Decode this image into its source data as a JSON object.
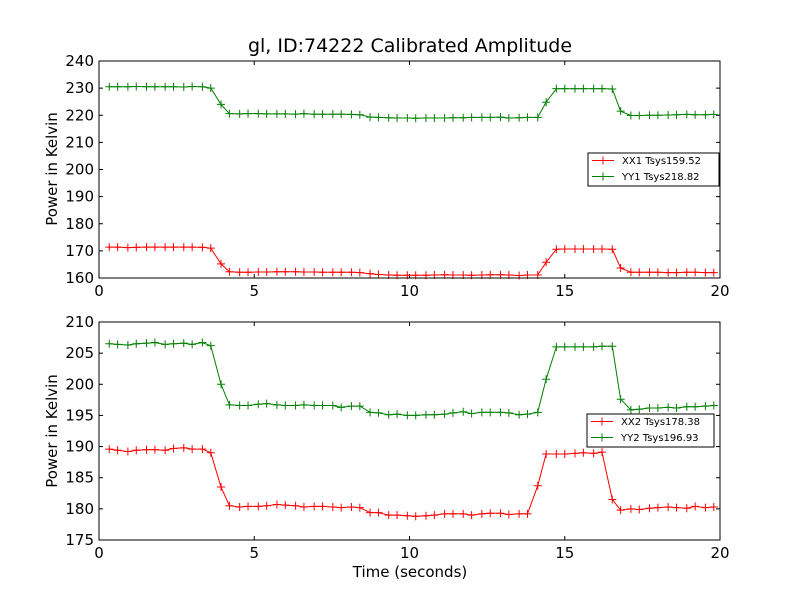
{
  "chart_data": [
    {
      "type": "line",
      "title": "gl, ID:74222 Calibrated Amplitude",
      "xlabel": "",
      "ylabel": "Power in Kelvin",
      "xlim": [
        0,
        20
      ],
      "ylim": [
        160,
        240
      ],
      "xticks": [
        "0",
        "5",
        "10",
        "15",
        "20"
      ],
      "yticks": [
        "160",
        "170",
        "180",
        "190",
        "200",
        "210",
        "220",
        "230",
        "240"
      ],
      "grid": false,
      "legend": "center-right",
      "x": [
        0.33,
        0.6,
        0.93,
        1.2,
        1.53,
        1.8,
        2.13,
        2.4,
        2.73,
        3.0,
        3.33,
        3.6,
        3.93,
        4.2,
        4.53,
        4.8,
        5.13,
        5.4,
        5.73,
        6.0,
        6.33,
        6.6,
        6.93,
        7.2,
        7.53,
        7.8,
        8.13,
        8.4,
        8.73,
        9.0,
        9.33,
        9.6,
        9.93,
        10.2,
        10.53,
        10.8,
        11.13,
        11.4,
        11.73,
        12.0,
        12.33,
        12.6,
        12.93,
        13.2,
        13.53,
        13.8,
        14.13,
        14.4,
        14.73,
        15.0,
        15.33,
        15.6,
        15.93,
        16.2,
        16.53,
        16.8,
        17.13,
        17.4,
        17.73,
        18.0,
        18.33,
        18.6,
        18.93,
        19.2,
        19.53,
        19.8
      ],
      "series": [
        {
          "name": "XX1 Tsys159.52",
          "color": "#ff0000",
          "values": [
            171.4,
            171.4,
            171.2,
            171.3,
            171.4,
            171.4,
            171.4,
            171.4,
            171.4,
            171.4,
            171.3,
            171.0,
            165.2,
            162.3,
            162.1,
            162.1,
            162.2,
            162.2,
            162.3,
            162.3,
            162.3,
            162.2,
            162.2,
            162.1,
            162.1,
            162.1,
            162.1,
            162.0,
            161.6,
            161.3,
            161.1,
            161.0,
            161.0,
            161.0,
            161.0,
            161.1,
            161.2,
            161.1,
            161.1,
            161.0,
            161.1,
            161.2,
            161.2,
            161.1,
            160.9,
            161.1,
            161.1,
            165.8,
            170.6,
            170.7,
            170.7,
            170.7,
            170.7,
            170.7,
            170.6,
            163.7,
            162.1,
            162.1,
            162.1,
            162.1,
            162.0,
            162.0,
            162.1,
            162.1,
            162.0,
            162.0
          ]
        },
        {
          "name": "YY1 Tsys218.82",
          "color": "#008000",
          "values": [
            230.5,
            230.5,
            230.5,
            230.6,
            230.5,
            230.5,
            230.5,
            230.5,
            230.4,
            230.6,
            230.5,
            230.0,
            224.0,
            220.6,
            220.5,
            220.6,
            220.6,
            220.5,
            220.5,
            220.5,
            220.4,
            220.6,
            220.4,
            220.4,
            220.4,
            220.4,
            220.3,
            220.2,
            219.3,
            219.2,
            219.1,
            219.0,
            219.0,
            218.9,
            219.0,
            219.0,
            219.0,
            219.1,
            219.1,
            219.2,
            219.2,
            219.2,
            219.3,
            219.0,
            219.1,
            219.2,
            219.2,
            224.8,
            229.8,
            229.8,
            229.8,
            229.8,
            229.8,
            229.8,
            229.7,
            221.5,
            219.9,
            219.9,
            220.0,
            220.0,
            220.1,
            220.2,
            220.3,
            220.2,
            220.2,
            220.3
          ]
        }
      ]
    },
    {
      "type": "line",
      "title": "",
      "xlabel": "Time (seconds)",
      "ylabel": "Power in Kelvin",
      "xlim": [
        0,
        20
      ],
      "ylim": [
        175,
        210
      ],
      "xticks": [
        "0",
        "5",
        "10",
        "15",
        "20"
      ],
      "yticks": [
        "175",
        "180",
        "185",
        "190",
        "195",
        "200",
        "205",
        "210"
      ],
      "grid": false,
      "legend": "center-right",
      "x": [
        0.33,
        0.6,
        0.93,
        1.2,
        1.53,
        1.8,
        2.13,
        2.4,
        2.73,
        3.0,
        3.33,
        3.6,
        3.93,
        4.2,
        4.53,
        4.8,
        5.13,
        5.4,
        5.73,
        6.0,
        6.33,
        6.6,
        6.93,
        7.2,
        7.53,
        7.8,
        8.13,
        8.4,
        8.73,
        9.0,
        9.33,
        9.6,
        9.93,
        10.2,
        10.53,
        10.8,
        11.13,
        11.4,
        11.73,
        12.0,
        12.33,
        12.6,
        12.93,
        13.2,
        13.53,
        13.8,
        14.13,
        14.4,
        14.73,
        15.0,
        15.33,
        15.6,
        15.93,
        16.2,
        16.53,
        16.8,
        17.13,
        17.4,
        17.73,
        18.0,
        18.33,
        18.6,
        18.93,
        19.2,
        19.53,
        19.8
      ],
      "series": [
        {
          "name": "XX2 Tsys178.38",
          "color": "#ff0000",
          "values": [
            189.6,
            189.4,
            189.2,
            189.4,
            189.5,
            189.5,
            189.4,
            189.7,
            189.8,
            189.6,
            189.6,
            189.0,
            183.5,
            180.5,
            180.3,
            180.4,
            180.4,
            180.5,
            180.7,
            180.6,
            180.5,
            180.3,
            180.4,
            180.4,
            180.3,
            180.2,
            180.3,
            180.2,
            179.4,
            179.4,
            179.0,
            179.0,
            178.9,
            178.8,
            178.9,
            179.0,
            179.2,
            179.2,
            179.2,
            179.0,
            179.2,
            179.3,
            179.3,
            179.1,
            179.2,
            179.2,
            183.7,
            188.8,
            188.8,
            188.8,
            188.9,
            189.0,
            188.9,
            189.1,
            181.5,
            179.8,
            180.0,
            179.9,
            180.1,
            180.2,
            180.3,
            180.2,
            180.1,
            180.4,
            180.2,
            180.3
          ]
        },
        {
          "name": "YY2 Tsys196.93",
          "color": "#008000",
          "values": [
            206.5,
            206.4,
            206.3,
            206.5,
            206.6,
            206.7,
            206.4,
            206.5,
            206.6,
            206.4,
            206.7,
            206.2,
            200.0,
            196.7,
            196.6,
            196.6,
            196.8,
            196.9,
            196.7,
            196.6,
            196.6,
            196.7,
            196.6,
            196.6,
            196.6,
            196.3,
            196.5,
            196.5,
            195.5,
            195.4,
            195.1,
            195.2,
            195.0,
            195.0,
            195.1,
            195.1,
            195.2,
            195.4,
            195.6,
            195.3,
            195.5,
            195.5,
            195.5,
            195.4,
            195.1,
            195.2,
            195.5,
            200.8,
            206.0,
            206.0,
            206.0,
            206.0,
            206.0,
            206.1,
            206.1,
            197.6,
            195.9,
            196.0,
            196.2,
            196.2,
            196.3,
            196.2,
            196.4,
            196.4,
            196.5,
            196.6
          ]
        }
      ]
    }
  ]
}
